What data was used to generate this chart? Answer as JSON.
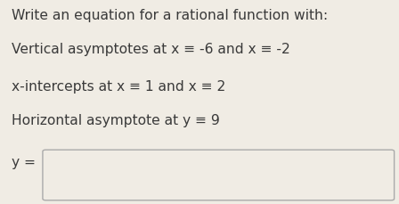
{
  "background_color": "#f0ece4",
  "title_line": "Write an equation for a rational function with:",
  "line1": "Vertical asymptotes at x ≡ -6 and x ≡ -2",
  "line2": "x-intercepts at x ≡ 1 and x ≡ 2",
  "line3": "Horizontal asymptote at y ≡ 9",
  "label_y": "y =",
  "text_color": "#3a3a3a",
  "box_fill": "#f0ece4",
  "box_edge": "#aaaaaa",
  "font_size_title": 11.2,
  "font_size_body": 11.2,
  "font_family": "DejaVu Sans"
}
